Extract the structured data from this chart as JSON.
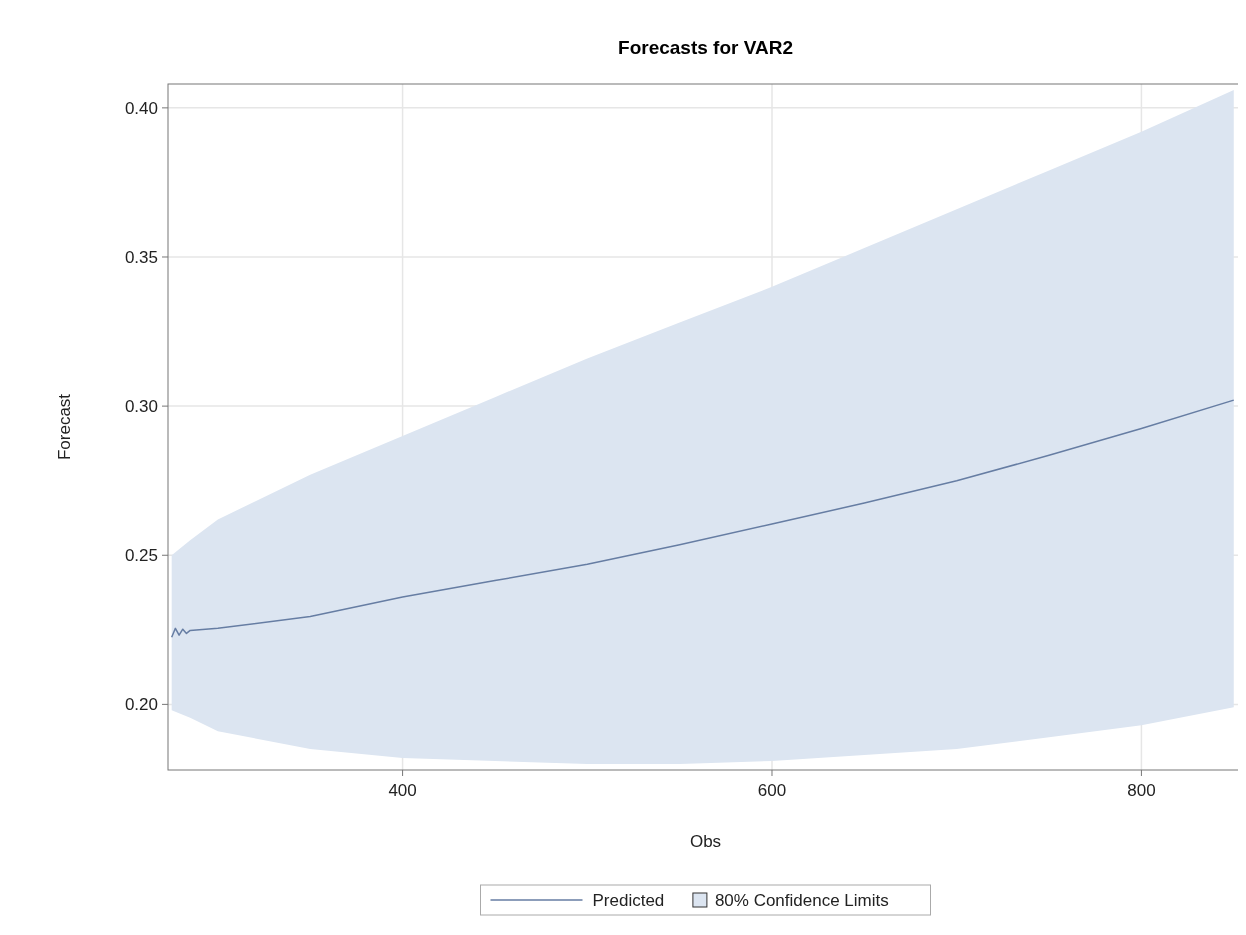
{
  "chart_data": {
    "type": "line",
    "title": "Forecasts for VAR2",
    "xlabel": "Obs",
    "ylabel": "Forecast",
    "xlim": [
      273,
      855
    ],
    "xticks": [
      400,
      600,
      800
    ],
    "ylim": [
      0.178,
      0.408
    ],
    "yticks": [
      {
        "value": 0.2,
        "label": "0.20"
      },
      {
        "value": 0.25,
        "label": "0.25"
      },
      {
        "value": 0.3,
        "label": "0.30"
      },
      {
        "value": 0.35,
        "label": "0.35"
      },
      {
        "value": 0.4,
        "label": "0.40"
      }
    ],
    "grid": true,
    "legend": "bottom",
    "line_style": "solid",
    "marker": "none",
    "annotations": [
      "80% Confidence Limits"
    ],
    "series": [
      {
        "name": "Predicted",
        "color": "#667da3",
        "x": [
          275,
          277,
          279,
          281,
          283,
          285,
          300,
          350,
          400,
          450,
          500,
          550,
          600,
          650,
          700,
          750,
          800,
          850
        ],
        "values": [
          0.2225,
          0.2255,
          0.2232,
          0.2252,
          0.2238,
          0.2248,
          0.2255,
          0.2295,
          0.236,
          0.2415,
          0.247,
          0.2535,
          0.2605,
          0.2675,
          0.275,
          0.2835,
          0.2925,
          0.302
        ],
        "lower": [
          0.198,
          0.1975,
          0.197,
          0.1965,
          0.196,
          0.1955,
          0.191,
          0.185,
          0.182,
          0.181,
          0.18,
          0.18,
          0.181,
          0.183,
          0.185,
          0.189,
          0.193,
          0.199
        ],
        "upper": [
          0.25,
          0.251,
          0.252,
          0.253,
          0.254,
          0.255,
          0.262,
          0.277,
          0.29,
          0.303,
          0.316,
          0.328,
          0.34,
          0.353,
          0.366,
          0.379,
          0.392,
          0.406
        ]
      }
    ]
  }
}
